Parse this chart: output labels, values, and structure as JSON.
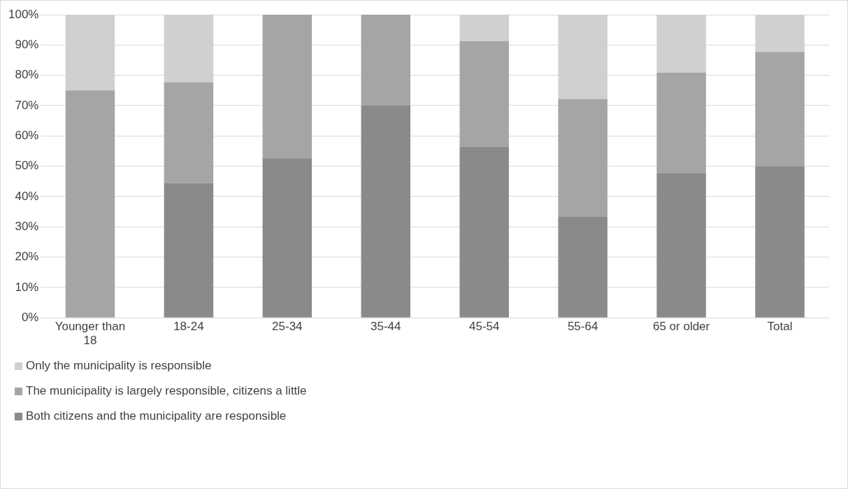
{
  "chart_data": {
    "type": "bar",
    "stacked": true,
    "categories": [
      "Younger than 18",
      "18-24",
      "25-34",
      "35-44",
      "45-54",
      "55-64",
      "65 or older",
      "Total"
    ],
    "series": [
      {
        "name": "Both citizens and the municipality are responsible",
        "color": "#8a8a8a",
        "values": [
          0,
          44.4,
          52.6,
          70,
          56.5,
          33.3,
          47.6,
          50
        ]
      },
      {
        "name": "The municipality is largely responsible, citizens a little",
        "color": "#a5a5a5",
        "values": [
          75,
          33.3,
          47.4,
          30,
          34.8,
          38.9,
          33.3,
          37.7
        ]
      },
      {
        "name": "Only the municipality is responsible",
        "color": "#d0d0d0",
        "values": [
          25,
          22.3,
          0,
          0,
          8.7,
          27.8,
          19.1,
          12.3
        ]
      }
    ],
    "ylim": [
      0,
      100
    ],
    "yticks": [
      {
        "value": 0,
        "label": "0%"
      },
      {
        "value": 10,
        "label": "10%"
      },
      {
        "value": 20,
        "label": "20%"
      },
      {
        "value": 30,
        "label": "30%"
      },
      {
        "value": 40,
        "label": "40%"
      },
      {
        "value": 50,
        "label": "50%"
      },
      {
        "value": 60,
        "label": "60%"
      },
      {
        "value": 70,
        "label": "70%"
      },
      {
        "value": 80,
        "label": "80%"
      },
      {
        "value": 90,
        "label": "90%"
      },
      {
        "value": 100,
        "label": "100%"
      }
    ],
    "grid": "y",
    "legend": "bottom"
  }
}
